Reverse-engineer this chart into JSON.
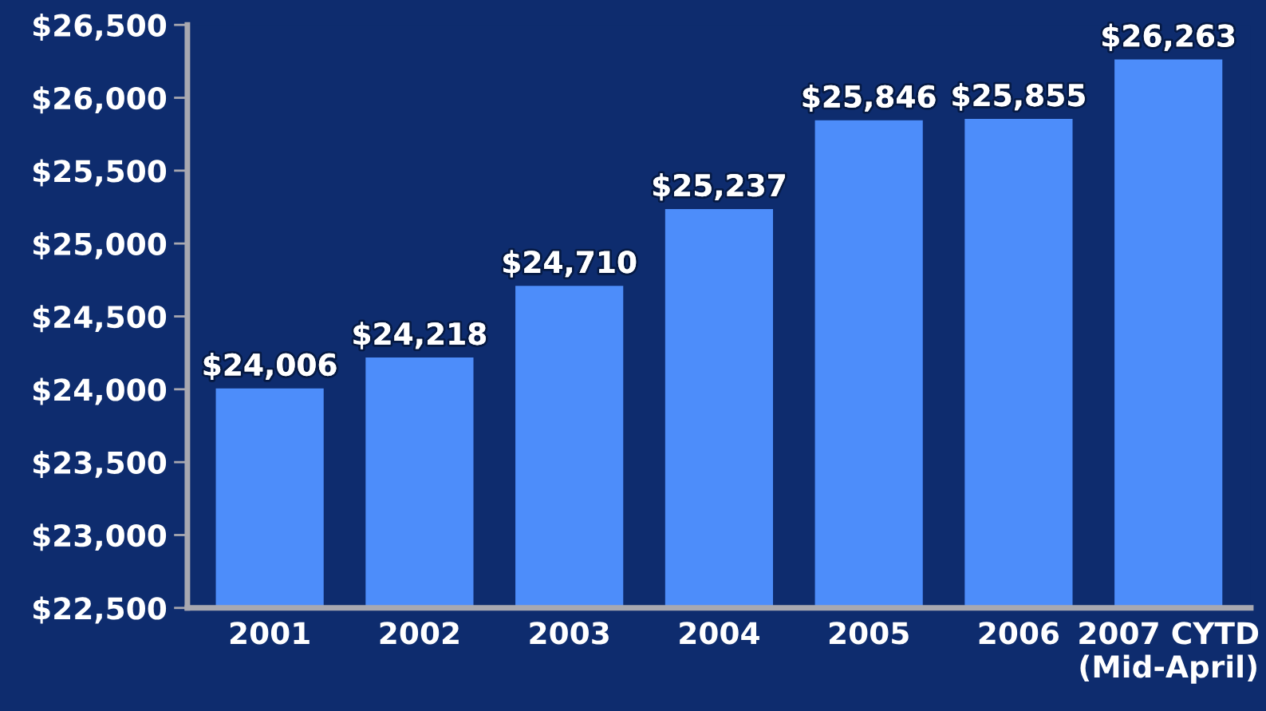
{
  "chart_data": {
    "type": "bar",
    "categories": [
      "2001",
      "2002",
      "2003",
      "2004",
      "2005",
      "2006",
      "2007 CYTD\n(Mid-April)"
    ],
    "values": [
      24006,
      24218,
      24710,
      25237,
      25846,
      25855,
      26263
    ],
    "value_labels": [
      "$24,006",
      "$24,218",
      "$24,710",
      "$25,237",
      "$25,846",
      "$25,855",
      "$26,263"
    ],
    "color": "#4d8dfa",
    "ylim": [
      22500,
      26500
    ],
    "yticks": [
      {
        "value": 22500,
        "label": "$22,500"
      },
      {
        "value": 23000,
        "label": "$23,000"
      },
      {
        "value": 23500,
        "label": "$23,500"
      },
      {
        "value": 24000,
        "label": "$24,000"
      },
      {
        "value": 24500,
        "label": "$24,500"
      },
      {
        "value": 25000,
        "label": "$25,000"
      },
      {
        "value": 25500,
        "label": "$25,500"
      },
      {
        "value": 26000,
        "label": "$26,000"
      },
      {
        "value": 26500,
        "label": "$26,500"
      }
    ],
    "grid": false,
    "legend": false
  }
}
